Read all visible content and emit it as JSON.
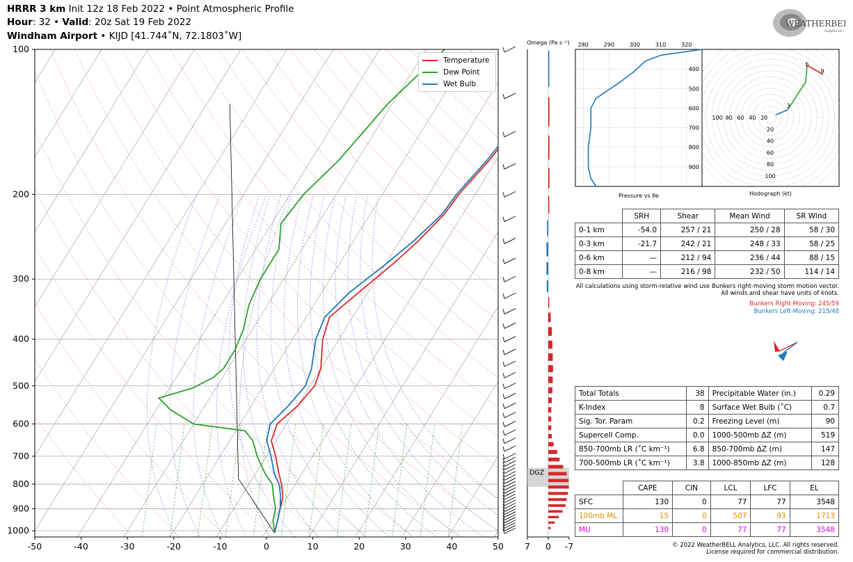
{
  "header": {
    "line1_bold": "HRRR 3 km",
    "line1_rest": " Init 12z 18 Feb 2022 • Point Atmospheric Profile",
    "line2_bold1": "Hour",
    "line2_mid": ": 32 • ",
    "line2_bold2": "Valid",
    "line2_rest": ": 20z Sat 19 Feb 2022",
    "line3_bold": "Windham Airport",
    "line3_rest": " • KIJD [41.744˚N, 72.1803˚W]"
  },
  "logo": {
    "text": "WEATHERBELL",
    "sub": "Analytics LLC"
  },
  "legend": [
    {
      "name": "Temperature",
      "color": "#d62728"
    },
    {
      "name": "Dew Point",
      "color": "#2ca02c"
    },
    {
      "name": "Wet Bulb",
      "color": "#1f77b4"
    }
  ],
  "chart_data": [
    {
      "type": "line",
      "name": "skew-t",
      "x_ticks": [
        -50,
        -40,
        -30,
        -20,
        -10,
        0,
        10,
        20,
        30,
        40,
        50
      ],
      "y_ticks": [
        100,
        200,
        300,
        400,
        500,
        600,
        700,
        800,
        900,
        1000
      ],
      "xlim": [
        -50,
        50
      ],
      "ylim": [
        1030,
        100
      ],
      "y_scale": "log",
      "series": [
        {
          "name": "Temperature",
          "color": "#d62728",
          "points": [
            [
              -0.5,
              100
            ],
            [
              -0.5,
              150
            ],
            [
              -1.5,
              170
            ],
            [
              -3.5,
              200
            ],
            [
              -4,
              220
            ],
            [
              -6,
              250
            ],
            [
              -8.5,
              280
            ],
            [
              -12,
              320
            ],
            [
              -15,
              360
            ],
            [
              -13.5,
              400
            ],
            [
              -10,
              460
            ],
            [
              -9,
              500
            ],
            [
              -10,
              550
            ],
            [
              -12,
              600
            ],
            [
              -11,
              650
            ],
            [
              -8,
              700
            ],
            [
              -5,
              760
            ],
            [
              -3,
              800
            ],
            [
              -1,
              850
            ],
            [
              0,
              900
            ],
            [
              1,
              950
            ],
            [
              2,
              1010
            ]
          ]
        },
        {
          "name": "Dew Point",
          "color": "#2ca02c",
          "points": [
            [
              -26,
              100
            ],
            [
              -31,
              130
            ],
            [
              -34,
              170
            ],
            [
              -37,
              200
            ],
            [
              -38,
              230
            ],
            [
              -35,
              260
            ],
            [
              -35,
              300
            ],
            [
              -34,
              340
            ],
            [
              -32,
              380
            ],
            [
              -31,
              420
            ],
            [
              -31,
              460
            ],
            [
              -32,
              480
            ],
            [
              -35,
              505
            ],
            [
              -41,
              530
            ],
            [
              -37,
              560
            ],
            [
              -30,
              600
            ],
            [
              -18,
              620
            ],
            [
              -15,
              650
            ],
            [
              -12,
              700
            ],
            [
              -8,
              760
            ],
            [
              -5,
              800
            ],
            [
              -3,
              850
            ],
            [
              -1,
              900
            ],
            [
              0,
              950
            ],
            [
              2,
              1010
            ]
          ]
        },
        {
          "name": "Wet Bulb",
          "color": "#1f77b4",
          "points": [
            [
              -1,
              100
            ],
            [
              -1,
              150
            ],
            [
              -2,
              170
            ],
            [
              -4,
              200
            ],
            [
              -4.5,
              220
            ],
            [
              -7,
              250
            ],
            [
              -10,
              280
            ],
            [
              -14,
              320
            ],
            [
              -16,
              360
            ],
            [
              -15,
              400
            ],
            [
              -12,
              460
            ],
            [
              -11,
              500
            ],
            [
              -12,
              550
            ],
            [
              -13.5,
              600
            ],
            [
              -12,
              650
            ],
            [
              -9,
              700
            ],
            [
              -6,
              760
            ],
            [
              -3.5,
              800
            ],
            [
              -1.5,
              850
            ],
            [
              0,
              900
            ],
            [
              1,
              950
            ],
            [
              2,
              1010
            ]
          ]
        }
      ],
      "dgz_label": "DGZ"
    },
    {
      "type": "bar",
      "name": "omega",
      "title": "Omega (Pa s⁻¹)",
      "x_ticks": [
        7,
        0,
        -7
      ],
      "pressure_levels": [
        100,
        125,
        150,
        175,
        200,
        225,
        250,
        275,
        300,
        325,
        350,
        375,
        400,
        425,
        450,
        475,
        500,
        525,
        550,
        575,
        600,
        625,
        650,
        675,
        700,
        725,
        750,
        775,
        800,
        825,
        850,
        875,
        900,
        925,
        950,
        975
      ],
      "values": [
        0,
        -0.4,
        -0.4,
        -0.4,
        -0.1,
        0.4,
        0.6,
        0.6,
        0.5,
        -0.3,
        -0.8,
        -1.2,
        -1.4,
        -1.5,
        -1.6,
        -1.5,
        -1.4,
        -1.2,
        -1.0,
        -1.0,
        -1.0,
        -1.2,
        -1.8,
        -3.0,
        -3.8,
        -5.0,
        -6.2,
        -6.8,
        -6.9,
        -6.6,
        -6.2,
        -5.8,
        -4.8,
        -3.5,
        -2.2,
        -0.8
      ]
    },
    {
      "type": "line",
      "name": "pressure-vs-theta-e",
      "xlabel": "Pressure vs θe",
      "x_ticks": [
        280,
        290,
        300,
        310,
        320
      ],
      "y_ticks": [
        400,
        500,
        600,
        700,
        800,
        900
      ],
      "xlim": [
        277,
        326
      ],
      "ylim": [
        1000,
        300
      ],
      "points": [
        [
          326,
          300
        ],
        [
          310,
          330
        ],
        [
          304,
          360
        ],
        [
          300,
          410
        ],
        [
          294,
          470
        ],
        [
          285,
          550
        ],
        [
          283,
          600
        ],
        [
          283,
          700
        ],
        [
          282,
          800
        ],
        [
          282,
          900
        ],
        [
          283,
          960
        ],
        [
          285,
          1000
        ]
      ]
    },
    {
      "type": "line",
      "name": "hodograph",
      "xlabel": "Hodograph (kt)",
      "ring_labels_x": [
        "100",
        "80",
        "60",
        "40",
        "20"
      ],
      "ring_labels_y": [
        "20",
        "40",
        "60",
        "80",
        "100"
      ],
      "point_labels": [
        "3",
        "6",
        "9"
      ]
    }
  ],
  "wind_table": {
    "headers": [
      "",
      "SRH",
      "Shear",
      "Mean Wind",
      "SR Wind"
    ],
    "rows": [
      [
        "0-1 km",
        "-54.0",
        "257 / 21",
        "250 / 28",
        "58 / 30"
      ],
      [
        "0-3 km",
        "-21.7",
        "242 / 21",
        "248 / 33",
        "58 / 25"
      ],
      [
        "0-6 km",
        "—",
        "212 / 94",
        "236 / 44",
        "88 / 15"
      ],
      [
        "0-8 km",
        "—",
        "216 / 98",
        "232 / 50",
        "114 / 14"
      ]
    ],
    "note1": "All calculations using storm-relative wind use Bunkers right-moving storm motion vector.",
    "note2": "All winds and shear have units of knots.",
    "bunkers_right": "Bunkers Right-Moving: 245/59",
    "bunkers_left": "Bunkers Left-Moving: 215/48"
  },
  "indices_table": {
    "rows": [
      [
        "Total Totals",
        "38",
        "Precipitable Water (in.)",
        "0.29"
      ],
      [
        "K-Index",
        "8",
        "Surface Wet Bulb (˚C)",
        "0.7"
      ],
      [
        "Sig. Tor. Param",
        "0.2",
        "Freezing Level (m)",
        "90"
      ],
      [
        "Supercell Comp.",
        "0.0",
        "1000-500mb ΔZ (m)",
        "519"
      ],
      [
        "850-700mb LR (˚C km⁻¹)",
        "6.8",
        "850-700mb ΔZ (m)",
        "147"
      ],
      [
        "700-500mb LR (˚C km⁻¹)",
        "3.8",
        "1000-850mb ΔZ (m)",
        "128"
      ]
    ]
  },
  "parcel_table": {
    "headers": [
      "",
      "CAPE",
      "CIN",
      "LCL",
      "LFC",
      "EL"
    ],
    "rows": [
      {
        "label": "SFC",
        "color": "#000000",
        "values": [
          "130",
          "0",
          "77",
          "77",
          "3548"
        ]
      },
      {
        "label": "100mb ML",
        "color": "#e08a00",
        "values": [
          "15",
          "0",
          "507",
          "93",
          "1713"
        ]
      },
      {
        "label": "MU",
        "color": "#e000e0",
        "values": [
          "130",
          "0",
          "77",
          "77",
          "3548"
        ]
      }
    ]
  },
  "footer": {
    "line1": "© 2022 WeatherBELL Analytics, LLC. All rights reserved.",
    "line2": "License required for commercial distribution."
  }
}
